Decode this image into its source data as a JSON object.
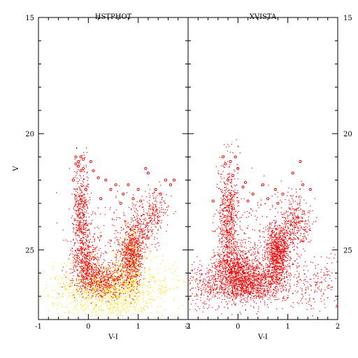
{
  "chart_data": {
    "type": "scatter",
    "y_axis": {
      "label": "V",
      "range": [
        28,
        15
      ],
      "tick_labels": [
        15,
        20,
        25
      ],
      "inverted": true
    },
    "panels": [
      {
        "title": "HSTPHOT",
        "x_axis": {
          "label": "V-I",
          "range": [
            -1,
            2
          ],
          "tick_labels": [
            -1,
            0,
            1,
            2
          ]
        },
        "series": [
          {
            "color": "#ffdd00",
            "marker": "dot",
            "clusters": [
              {
                "cx": 0.45,
                "cy": 26.7,
                "sx": 0.45,
                "sy": 0.6,
                "n": 900
              },
              {
                "cx": 0.85,
                "cy": 25.4,
                "sx": 0.12,
                "sy": 0.7,
                "n": 250
              },
              {
                "cx": -0.3,
                "cy": 26.9,
                "sx": 0.5,
                "sy": 0.6,
                "n": 160
              },
              {
                "cx": 1.2,
                "cy": 26.5,
                "sx": 0.5,
                "sy": 0.8,
                "n": 160
              }
            ]
          },
          {
            "color": "#ee0000",
            "marker": "dot",
            "clusters": [
              {
                "cx": -0.15,
                "cy": 23.5,
                "sx": 0.08,
                "sy": 1.1,
                "n": 500
              },
              {
                "cx": -0.05,
                "cy": 25.6,
                "sx": 0.15,
                "sy": 0.6,
                "n": 500
              },
              {
                "cx": 0.3,
                "cy": 26.3,
                "sx": 0.3,
                "sy": 0.35,
                "n": 500
              },
              {
                "cx": 0.85,
                "cy": 25.2,
                "sx": 0.12,
                "sy": 0.65,
                "n": 650
              },
              {
                "cx": 1.1,
                "cy": 24.0,
                "sx": 0.15,
                "sy": 0.5,
                "n": 250
              },
              {
                "cx": 1.35,
                "cy": 23.2,
                "sx": 0.12,
                "sy": 0.4,
                "n": 150
              },
              {
                "cx": 0.4,
                "cy": 24.5,
                "sx": 0.4,
                "sy": 1.0,
                "n": 150
              }
            ]
          },
          {
            "color": "#ee0000",
            "marker": "circle",
            "points": [
              [
                -0.25,
                21.0
              ],
              [
                -0.2,
                21.2
              ],
              [
                -0.15,
                21.0
              ],
              [
                -0.1,
                21.1
              ],
              [
                -0.2,
                21.4
              ],
              [
                -0.15,
                21.6
              ],
              [
                -0.1,
                21.5
              ],
              [
                -0.25,
                21.3
              ],
              [
                0.05,
                21.2
              ],
              [
                0.1,
                21.6
              ],
              [
                0.2,
                21.9
              ],
              [
                0.35,
                22.0
              ],
              [
                0.45,
                22.4
              ],
              [
                0.55,
                22.2
              ],
              [
                0.7,
                22.6
              ],
              [
                0.8,
                22.2
              ],
              [
                0.9,
                22.8
              ],
              [
                1.0,
                22.4
              ],
              [
                1.15,
                21.5
              ],
              [
                1.2,
                21.7
              ],
              [
                1.35,
                22.4
              ],
              [
                1.45,
                22.6
              ],
              [
                1.55,
                22.0
              ],
              [
                1.65,
                22.2
              ],
              [
                1.72,
                22.0
              ],
              [
                -0.3,
                22.0
              ],
              [
                -0.05,
                22.4
              ],
              [
                0.25,
                22.8
              ],
              [
                0.65,
                23.0
              ],
              [
                1.05,
                22.9
              ]
            ]
          }
        ]
      },
      {
        "title": "XVISTA",
        "x_axis": {
          "label": "V-I",
          "range": [
            -1,
            2
          ],
          "tick_labels": [
            -1,
            0,
            1,
            2
          ]
        },
        "series": [
          {
            "color": "#ee0000",
            "marker": "dot",
            "clusters": [
              {
                "cx": -0.2,
                "cy": 23.8,
                "sx": 0.1,
                "sy": 1.2,
                "n": 700
              },
              {
                "cx": -0.05,
                "cy": 26.0,
                "sx": 0.25,
                "sy": 0.6,
                "n": 1100
              },
              {
                "cx": 0.4,
                "cy": 26.4,
                "sx": 0.3,
                "sy": 0.4,
                "n": 800
              },
              {
                "cx": 0.8,
                "cy": 25.1,
                "sx": 0.12,
                "sy": 0.6,
                "n": 900
              },
              {
                "cx": 1.15,
                "cy": 23.8,
                "sx": 0.15,
                "sy": 0.6,
                "n": 350
              },
              {
                "cx": -0.6,
                "cy": 26.5,
                "sx": 0.35,
                "sy": 0.5,
                "n": 300
              },
              {
                "cx": 1.5,
                "cy": 26.3,
                "sx": 0.4,
                "sy": 0.6,
                "n": 250
              },
              {
                "cx": 0.4,
                "cy": 24.5,
                "sx": 0.4,
                "sy": 1.0,
                "n": 200
              }
            ]
          },
          {
            "color": "#ee0000",
            "marker": "circle",
            "points": [
              [
                -0.3,
                21.0
              ],
              [
                -0.25,
                21.3
              ],
              [
                -0.15,
                21.2
              ],
              [
                -0.05,
                21.0
              ],
              [
                0.0,
                21.5
              ],
              [
                -0.1,
                21.8
              ],
              [
                -0.2,
                22.0
              ],
              [
                0.1,
                22.3
              ],
              [
                0.15,
                22.1
              ],
              [
                0.3,
                22.6
              ],
              [
                0.5,
                22.2
              ],
              [
                0.6,
                22.8
              ],
              [
                0.75,
                22.4
              ],
              [
                0.9,
                22.6
              ],
              [
                1.1,
                21.7
              ],
              [
                1.25,
                21.2
              ],
              [
                1.3,
                22.2
              ],
              [
                1.45,
                22.4
              ],
              [
                -0.5,
                22.9
              ],
              [
                0.2,
                22.9
              ],
              [
                0.8,
                23.0
              ]
            ]
          }
        ]
      }
    ]
  }
}
